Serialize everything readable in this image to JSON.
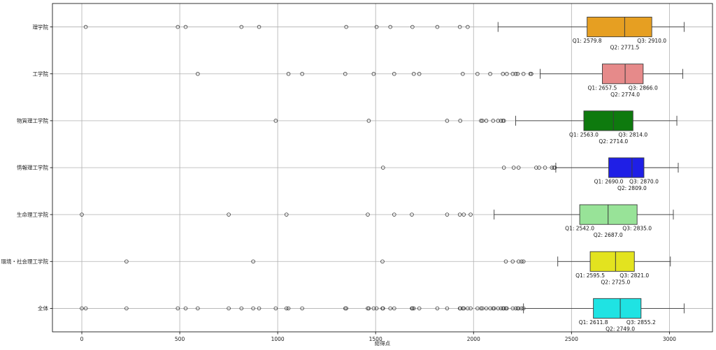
{
  "chart_data": {
    "type": "boxplot",
    "orientation": "horizontal",
    "xlabel": "総得点",
    "ylabel": "",
    "xlim": [
      -150,
      3220
    ],
    "xticks": [
      0,
      500,
      1000,
      1500,
      2000,
      2500,
      3000
    ],
    "grid": true,
    "categories": [
      {
        "name": "理学院",
        "color": "#E69F22",
        "q1": 2579.8,
        "q2": 2771.5,
        "q3": 2910.0,
        "q1_label": "Q1: 2579.8",
        "q2_label": "Q2: 2771.5",
        "q3_label": "Q3: 2910.0",
        "whisker_low": 2125,
        "whisker_high": 3075,
        "outliers": [
          20,
          490,
          530,
          815,
          905,
          1350,
          1505,
          1575,
          1688,
          1815,
          1930,
          1970
        ]
      },
      {
        "name": "工学院",
        "color": "#E68A8A",
        "q1": 2657.5,
        "q2": 2774.0,
        "q3": 2866.0,
        "q1_label": "Q1: 2657.5",
        "q2_label": "Q2: 2774.0",
        "q3_label": "Q3: 2866.0",
        "whisker_low": 2340,
        "whisker_high": 3068,
        "outliers": [
          592,
          1055,
          1125,
          1345,
          1490,
          1595,
          1695,
          1723,
          1945,
          2020,
          2085,
          2150,
          2170,
          2200,
          2215,
          2225,
          2255,
          2290,
          2295
        ]
      },
      {
        "name": "物質理工学院",
        "color": "#0E7A0E",
        "q1": 2563.0,
        "q2": 2714.0,
        "q3": 2814.0,
        "q1_label": "Q1: 2563.0",
        "q2_label": "Q2: 2714.0",
        "q3_label": "Q3: 2814.0",
        "whisker_low": 2215,
        "whisker_high": 3038,
        "outliers": [
          990,
          1465,
          1865,
          1932,
          2038,
          2045,
          2065,
          2100,
          2125,
          2140,
          2150,
          2155
        ]
      },
      {
        "name": "情報理工学院",
        "color": "#1F1FE6",
        "q1": 2690.0,
        "q2": 2809.0,
        "q3": 2870.0,
        "q1_label": "Q1: 2690.0",
        "q2_label": "Q2: 2809.0",
        "q3_label": "Q3: 2870.0",
        "whisker_low": 2420,
        "whisker_high": 3045,
        "outliers": [
          1538,
          2155,
          2205,
          2230,
          2320,
          2335,
          2365,
          2400,
          2410,
          2415
        ]
      },
      {
        "name": "生命理工学院",
        "color": "#98E398",
        "q1": 2542.0,
        "q2": 2687.0,
        "q3": 2835.0,
        "q1_label": "Q1: 2542.0",
        "q2_label": "Q2: 2687.0",
        "q3_label": "Q3: 2835.0",
        "whisker_low": 2105,
        "whisker_high": 3020,
        "outliers": [
          0,
          750,
          1045,
          1460,
          1595,
          1685,
          1865,
          1930,
          1950,
          1985
        ]
      },
      {
        "name": "環境・社会理工学院",
        "color": "#E3E31F",
        "q1": 2595.5,
        "q2": 2725.0,
        "q3": 2821.0,
        "q1_label": "Q1: 2595.5",
        "q2_label": "Q2: 2725.0",
        "q3_label": "Q3: 2821.0",
        "whisker_low": 2430,
        "whisker_high": 3005,
        "outliers": [
          228,
          875,
          1535,
          2165,
          2200,
          2230,
          2245,
          2255
        ]
      },
      {
        "name": "全体",
        "color": "#1FE3E3",
        "q1": 2611.8,
        "q2": 2749.0,
        "q3": 2855.2,
        "q1_label": "Q1: 2611.8",
        "q2_label": "Q2: 2749.0",
        "q3_label": "Q3: 2855.2",
        "whisker_low": 2255,
        "whisker_high": 3075,
        "outliers": [
          0,
          20,
          228,
          490,
          530,
          592,
          750,
          815,
          875,
          905,
          990,
          1045,
          1055,
          1125,
          1345,
          1350,
          1460,
          1465,
          1490,
          1505,
          1535,
          1538,
          1575,
          1595,
          1685,
          1688,
          1695,
          1723,
          1815,
          1865,
          1930,
          1932,
          1945,
          1950,
          1970,
          1985,
          2020,
          2038,
          2045,
          2065,
          2085,
          2100,
          2105,
          2125,
          2140,
          2150,
          2155,
          2165,
          2170,
          2200,
          2215,
          2225,
          2230,
          2245,
          2255
        ]
      }
    ]
  }
}
